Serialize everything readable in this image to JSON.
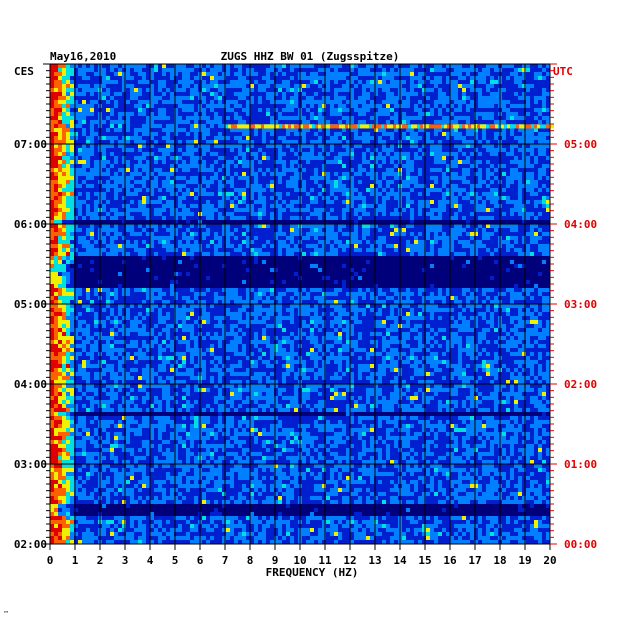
{
  "chart_data": {
    "type": "heatmap",
    "title": "ZUGS HHZ BW 01 (Zugsspitze)",
    "date": "May16,2010",
    "xlabel": "FREQUENCY (HZ)",
    "xlim": [
      0,
      20
    ],
    "x_ticks": [
      "0",
      "1",
      "2",
      "3",
      "4",
      "5",
      "6",
      "7",
      "8",
      "9",
      "10",
      "11",
      "12",
      "13",
      "14",
      "15",
      "16",
      "17",
      "18",
      "19",
      "20"
    ],
    "left_axis_label": "CES",
    "right_axis_label": "UTC",
    "left_ticks": [
      "07:00",
      "06:00",
      "05:00",
      "04:00",
      "03:00",
      "02:00"
    ],
    "right_ticks": [
      "05:00",
      "04:00",
      "03:00",
      "02:00",
      "01:00",
      "00:00"
    ],
    "time_range_utc_hours": [
      0,
      6
    ],
    "grid": true,
    "colormap": [
      "#00007a",
      "#0020d0",
      "#0080ff",
      "#00e0e0",
      "#f0f000",
      "#ff6000",
      "#e00000"
    ],
    "low_power_bands_utc_hours": [
      [
        3.2,
        3.6
      ],
      [
        0.35,
        0.5
      ],
      [
        4.0,
        4.05
      ],
      [
        1.6,
        1.65
      ]
    ],
    "high_power_features": [
      {
        "freq_hz": [
          7,
          21
        ],
        "utc_hour": 5.22,
        "note": "broadband line"
      },
      {
        "freq_hz": [
          0,
          1
        ],
        "utc_hour": [
          0,
          6
        ],
        "note": "microseism band"
      }
    ]
  },
  "footer_mark": "™"
}
